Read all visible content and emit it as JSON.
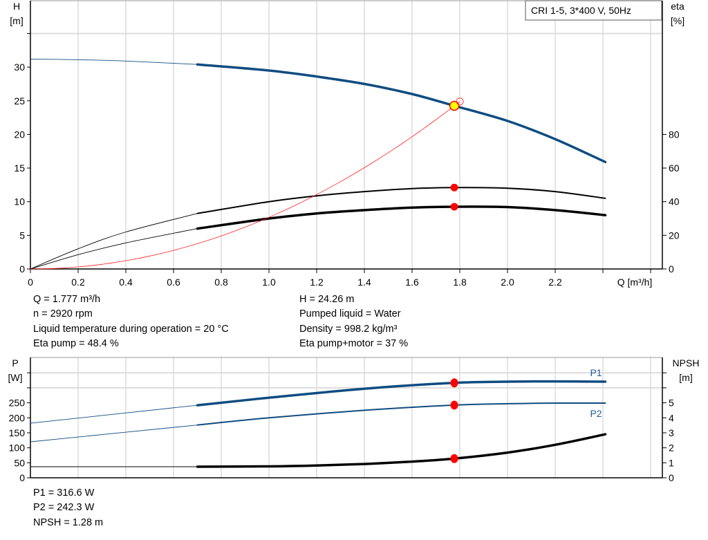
{
  "chart_data": [
    {
      "type": "line",
      "title": "",
      "legend_box": "CRI 1-5, 3*400 V, 50Hz",
      "xlabel": "Q [m³/h]",
      "ylabel_left": [
        "H",
        "[m]"
      ],
      "ylabel_right": [
        "eta",
        "[%]"
      ],
      "xlim": [
        0,
        2.65
      ],
      "ylim_left": [
        0,
        40
      ],
      "ylim_right": [
        0,
        160
      ],
      "x_ticks": [
        "0",
        "0.2",
        "0.4",
        "0.6",
        "0.8",
        "1.0",
        "1.2",
        "1.4",
        "1.6",
        "1.8",
        "2.0",
        "2.2"
      ],
      "y_ticks_left": [
        "0",
        "5",
        "10",
        "15",
        "20",
        "25",
        "30"
      ],
      "y_ticks_right": [
        "0",
        "20",
        "40",
        "60",
        "80"
      ],
      "grid": true,
      "series": [
        {
          "id": "head",
          "axis": "left",
          "color": "#0f4c81",
          "thick_from": 0.7,
          "x": [
            0,
            0.2,
            0.4,
            0.7,
            1.0,
            1.2,
            1.4,
            1.6,
            1.777,
            2.0,
            2.2,
            2.41
          ],
          "y": [
            31.2,
            31.1,
            30.9,
            30.4,
            29.5,
            28.6,
            27.5,
            26.0,
            24.26,
            22.0,
            19.3,
            15.9
          ]
        },
        {
          "id": "eta-pump",
          "axis": "right",
          "color": "#000000",
          "thick_from": 0.7,
          "width": 2,
          "x": [
            0,
            0.2,
            0.4,
            0.7,
            1.0,
            1.2,
            1.4,
            1.6,
            1.777,
            2.0,
            2.2,
            2.41
          ],
          "y": [
            0,
            12,
            22,
            33,
            40,
            43.5,
            46,
            47.8,
            48.4,
            48,
            46,
            42
          ]
        },
        {
          "id": "eta-pump-motor",
          "axis": "right",
          "color": "#000000",
          "thick_from": 0.7,
          "width": 3.5,
          "x": [
            0,
            0.2,
            0.4,
            0.7,
            1.0,
            1.2,
            1.4,
            1.6,
            1.777,
            2.0,
            2.2,
            2.41
          ],
          "y": [
            0,
            8.5,
            15.5,
            24,
            30,
            33,
            35,
            36.5,
            37,
            36.8,
            35,
            32
          ]
        },
        {
          "id": "system-curve",
          "axis": "left",
          "color": "#ff2020",
          "quadratic_k": 7.68,
          "x_end": 1.8
        }
      ],
      "duty_points": [
        {
          "x": 1.777,
          "y": 24.26,
          "axis": "left",
          "style": "yellow"
        },
        {
          "x": 1.777,
          "y": 48.4,
          "axis": "right",
          "style": "red"
        },
        {
          "x": 1.777,
          "y": 37,
          "axis": "right",
          "style": "red"
        },
        {
          "x": 1.8,
          "y": 24.9,
          "axis": "left",
          "style": "hollow"
        }
      ]
    },
    {
      "type": "line",
      "title": "",
      "ylabel_left": [
        "P",
        "[W]"
      ],
      "ylabel_right": [
        "NPSH",
        "[m]"
      ],
      "xlim": [
        0,
        2.65
      ],
      "ylim_left": [
        0,
        400
      ],
      "ylim_right": [
        0,
        8
      ],
      "y_ticks_left": [
        "0",
        "50",
        "100",
        "150",
        "200",
        "250"
      ],
      "y_ticks_right": [
        "0",
        "1",
        "2",
        "3",
        "4",
        "5"
      ],
      "grid": true,
      "series": [
        {
          "name": "P1",
          "id": "p1",
          "axis": "left",
          "color": "#0f4c81",
          "thick_from": 0.7,
          "width": 3.5,
          "x": [
            0,
            0.7,
            1.0,
            1.4,
            1.777,
            2.0,
            2.2,
            2.41
          ],
          "y": [
            182,
            242,
            267,
            297,
            316.6,
            320.5,
            321.5,
            320.5
          ]
        },
        {
          "name": "P2",
          "id": "p2",
          "axis": "left",
          "color": "#0f4c81",
          "thick_from": 0.7,
          "width": 2,
          "x": [
            0,
            0.7,
            1.0,
            1.4,
            1.777,
            2.0,
            2.2,
            2.41
          ],
          "y": [
            120,
            176,
            200,
            225,
            242.3,
            247,
            249,
            249
          ]
        },
        {
          "id": "npsh",
          "axis": "right",
          "color": "#000000",
          "thick_from": 0.7,
          "width": 3.5,
          "x": [
            0,
            0.7,
            1.0,
            1.2,
            1.4,
            1.6,
            1.777,
            2.0,
            2.2,
            2.41
          ],
          "y": [
            0.74,
            0.74,
            0.76,
            0.82,
            0.92,
            1.08,
            1.28,
            1.68,
            2.2,
            2.9
          ]
        }
      ],
      "duty_points": [
        {
          "x": 1.777,
          "y": 316.6,
          "axis": "left",
          "style": "red"
        },
        {
          "x": 1.777,
          "y": 242.3,
          "axis": "left",
          "style": "red"
        },
        {
          "x": 1.777,
          "y": 1.28,
          "axis": "right",
          "style": "red"
        }
      ]
    }
  ],
  "info_top_left": [
    "Q = 1.777 m³/h",
    "n = 2920 rpm",
    "Liquid temperature during operation = 20 °C",
    "Eta pump = 48.4 %"
  ],
  "info_top_right": [
    "H = 24.26 m",
    "Pumped liquid = Water",
    "Density = 998.2 kg/m³",
    "Eta pump+motor = 37 %"
  ],
  "info_bottom": [
    "P1 = 316.6 W",
    "P2 = 242.3 W",
    "NPSH = 1.28 m"
  ]
}
